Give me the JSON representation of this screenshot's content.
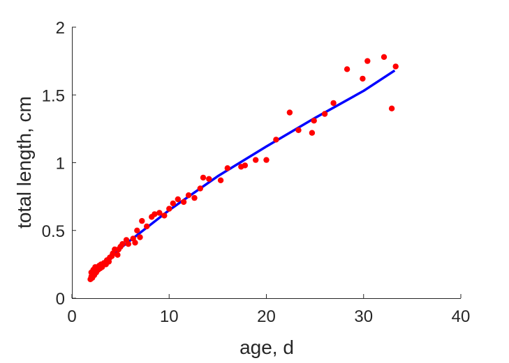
{
  "chart_data": {
    "type": "scatter",
    "title": "",
    "xlabel": "age, d",
    "ylabel": "total length, cm",
    "xlim": [
      0,
      40
    ],
    "ylim": [
      0,
      2
    ],
    "xticks": [
      0,
      10,
      20,
      30,
      40
    ],
    "xtick_labels": [
      "0",
      "10",
      "20",
      "30",
      "40"
    ],
    "yticks": [
      0,
      0.5,
      1,
      1.5,
      2
    ],
    "ytick_labels": [
      "0",
      "0.5",
      "1",
      "1.5",
      "2"
    ],
    "grid": false,
    "legend": false,
    "series": [
      {
        "type": "scatter",
        "color": "#ff0000",
        "points": [
          [
            1.9,
            0.14
          ],
          [
            2.0,
            0.16
          ],
          [
            2.0,
            0.19
          ],
          [
            2.1,
            0.15
          ],
          [
            2.2,
            0.18
          ],
          [
            2.2,
            0.21
          ],
          [
            2.3,
            0.17
          ],
          [
            2.4,
            0.2
          ],
          [
            2.4,
            0.23
          ],
          [
            2.5,
            0.19
          ],
          [
            2.6,
            0.22
          ],
          [
            2.7,
            0.21
          ],
          [
            2.8,
            0.24
          ],
          [
            2.9,
            0.22
          ],
          [
            3.0,
            0.25
          ],
          [
            3.1,
            0.23
          ],
          [
            3.3,
            0.26
          ],
          [
            3.5,
            0.25
          ],
          [
            3.6,
            0.28
          ],
          [
            3.8,
            0.27
          ],
          [
            3.9,
            0.3
          ],
          [
            4.1,
            0.31
          ],
          [
            4.2,
            0.33
          ],
          [
            4.4,
            0.36
          ],
          [
            4.7,
            0.32
          ],
          [
            4.8,
            0.36
          ],
          [
            5.0,
            0.38
          ],
          [
            5.2,
            0.4
          ],
          [
            5.6,
            0.43
          ],
          [
            5.8,
            0.4
          ],
          [
            6.3,
            0.44
          ],
          [
            6.5,
            0.41
          ],
          [
            6.7,
            0.5
          ],
          [
            7.0,
            0.45
          ],
          [
            7.2,
            0.57
          ],
          [
            7.7,
            0.53
          ],
          [
            8.2,
            0.6
          ],
          [
            8.5,
            0.62
          ],
          [
            9.0,
            0.63
          ],
          [
            9.5,
            0.61
          ],
          [
            10.0,
            0.66
          ],
          [
            10.4,
            0.7
          ],
          [
            10.9,
            0.73
          ],
          [
            11.5,
            0.71
          ],
          [
            12.0,
            0.76
          ],
          [
            12.6,
            0.74
          ],
          [
            13.2,
            0.81
          ],
          [
            13.5,
            0.89
          ],
          [
            14.1,
            0.88
          ],
          [
            15.3,
            0.87
          ],
          [
            16.0,
            0.96
          ],
          [
            17.4,
            0.97
          ],
          [
            17.8,
            0.98
          ],
          [
            18.9,
            1.02
          ],
          [
            20.0,
            1.02
          ],
          [
            21.0,
            1.17
          ],
          [
            22.4,
            1.37
          ],
          [
            23.3,
            1.24
          ],
          [
            24.7,
            1.22
          ],
          [
            24.9,
            1.31
          ],
          [
            26.0,
            1.36
          ],
          [
            26.9,
            1.44
          ],
          [
            28.3,
            1.69
          ],
          [
            29.9,
            1.62
          ],
          [
            30.4,
            1.75
          ],
          [
            32.1,
            1.78
          ],
          [
            32.9,
            1.4
          ],
          [
            33.3,
            1.71
          ]
        ]
      },
      {
        "type": "line",
        "color": "#0000ff",
        "x": [
          1.9,
          5,
          10,
          15,
          20,
          25,
          30,
          33.2
        ],
        "y": [
          0.16,
          0.37,
          0.65,
          0.9,
          1.12,
          1.33,
          1.53,
          1.68
        ]
      }
    ]
  }
}
